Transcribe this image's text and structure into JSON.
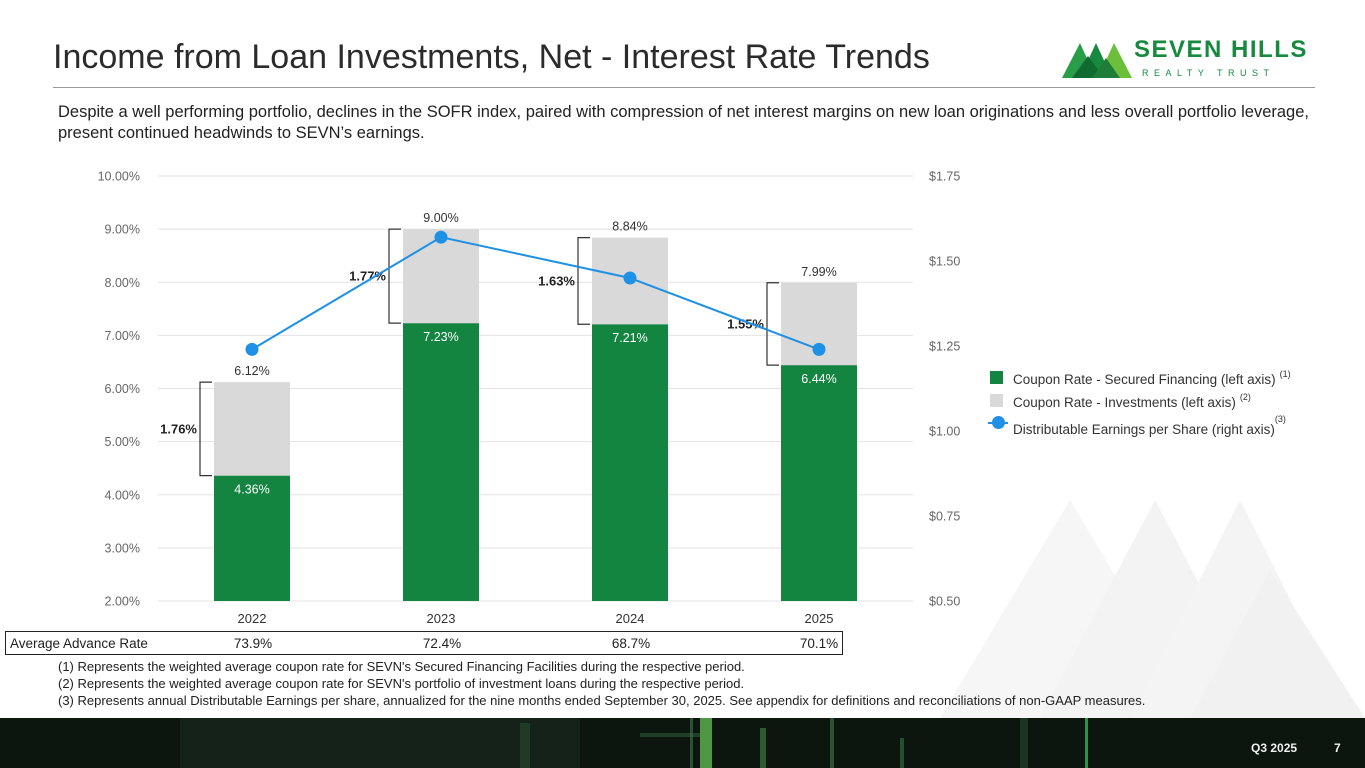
{
  "header": {
    "title": "Income from Loan Investments, Net - Interest Rate Trends",
    "subtitle": "Despite a well performing portfolio, declines in the SOFR index, paired with compression of net interest margins on new loan originations and less overall portfolio leverage, present continued headwinds to SEVN’s earnings.",
    "logo_name": "SEVEN HILLS",
    "logo_sub": "REALTY TRUST"
  },
  "colors": {
    "secured": "#138540",
    "investments": "#d9d9d9",
    "eps": "#1e90e6",
    "brand": "#178a3f"
  },
  "chart_data": {
    "type": "bar",
    "categories": [
      "2022",
      "2023",
      "2024",
      "2025"
    ],
    "series": [
      {
        "name": "Coupon Rate - Secured Financing (left axis)",
        "footnote": "(1)",
        "kind": "bar",
        "values": [
          4.36,
          7.23,
          7.21,
          6.44
        ],
        "labels": [
          "4.36%",
          "7.23%",
          "7.21%",
          "6.44%"
        ]
      },
      {
        "name": "Coupon Rate - Investments (left axis)",
        "footnote": "(2)",
        "kind": "bar-total",
        "values": [
          6.12,
          9.0,
          8.84,
          7.99
        ],
        "labels": [
          "6.12%",
          "9.00%",
          "8.84%",
          "7.99%"
        ]
      },
      {
        "name": "Distributable Earnings per Share (right axis)",
        "footnote": "(3)",
        "kind": "line",
        "values": [
          1.24,
          1.57,
          1.45,
          1.24
        ]
      }
    ],
    "spreads": [
      "1.76%",
      "1.77%",
      "1.63%",
      "1.55%"
    ],
    "left_axis": {
      "min": 2,
      "max": 10,
      "ticks": [
        "2.00%",
        "3.00%",
        "4.00%",
        "5.00%",
        "6.00%",
        "7.00%",
        "8.00%",
        "9.00%",
        "10.00%"
      ]
    },
    "right_axis": {
      "min": 0.5,
      "max": 1.75,
      "ticks": [
        "$0.50",
        "$0.75",
        "$1.00",
        "$1.25",
        "$1.50",
        "$1.75"
      ]
    },
    "grid": true,
    "legend": "right"
  },
  "advance_rate": {
    "label": "Average Advance Rate",
    "values": [
      "73.9%",
      "72.4%",
      "68.7%",
      "70.1%"
    ]
  },
  "footnotes": [
    "(1) Represents the weighted average coupon rate for SEVN's Secured Financing Facilities during the respective period.",
    "(2) Represents the weighted average coupon rate for SEVN's portfolio of investment loans during the respective period.",
    "(3) Represents annual Distributable Earnings per share, annualized for the nine months ended September 30, 2025. See appendix for definitions and reconciliations of non-GAAP measures."
  ],
  "footer": {
    "period": "Q3 2025",
    "page": "7"
  }
}
